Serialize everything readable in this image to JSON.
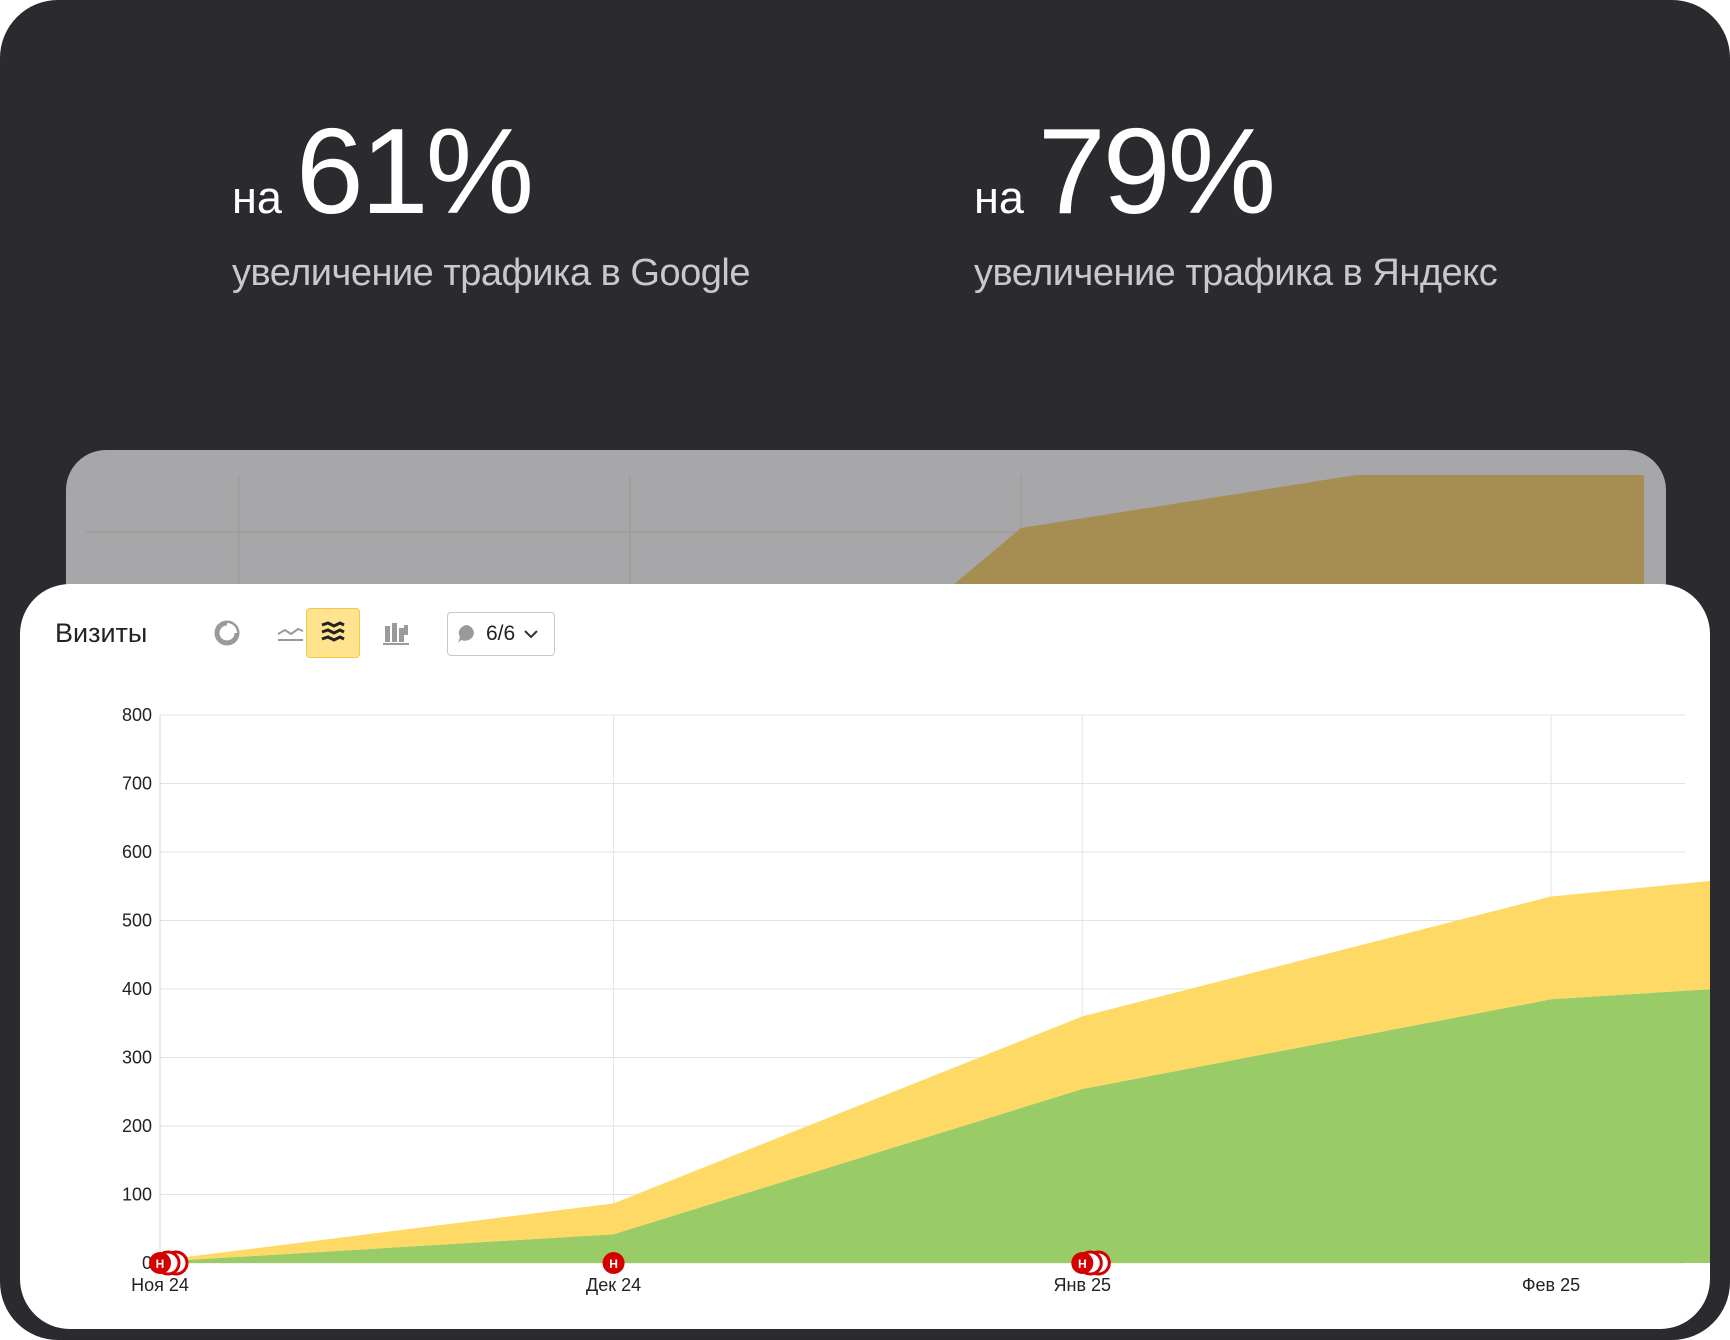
{
  "stats": [
    {
      "prefix": "на",
      "value": "61%",
      "caption": "увеличение трафика в Google"
    },
    {
      "prefix": "на",
      "value": "79%",
      "caption": "увеличение трафика в Яндекс"
    }
  ],
  "card": {
    "title": "Визиты",
    "toolbar_icons": [
      "pie-chart-icon",
      "line-chart-icon",
      "area-chart-icon",
      "bar-chart-icon"
    ],
    "active_tool": "area-chart-icon",
    "selector_label": "6/6"
  },
  "colors": {
    "background": "#2b2a2f",
    "series_yellow": "#ffd966",
    "series_green": "#99cc66",
    "annotation_red": "#d40000"
  },
  "chart_data": {
    "type": "area",
    "stacked": true,
    "x": [
      "2024-11-01",
      "2024-12-01",
      "2025-01-01",
      "2025-02-01",
      "2025-02-28"
    ],
    "x_tick_labels": [
      "Ноя 24",
      "Дек 24",
      "Янв 25",
      "Фев 25"
    ],
    "y_tick_labels": [
      "0",
      "100",
      "200",
      "300",
      "400",
      "500",
      "600",
      "700",
      "800"
    ],
    "ylim": [
      0,
      800
    ],
    "grid": true,
    "series": [
      {
        "values": [
          2,
          42,
          254,
          385,
          423
        ],
        "color": "#99cc66"
      },
      {
        "values": [
          2,
          45,
          106,
          150,
          170
        ],
        "color": "#ffd966"
      }
    ],
    "annotations": [
      {
        "x": "2024-11-01",
        "label": "Н",
        "count": 3
      },
      {
        "x": "2024-12-01",
        "label": "Н",
        "count": 1
      },
      {
        "x": "2025-01-01",
        "label": "Н",
        "count": 3
      }
    ]
  }
}
